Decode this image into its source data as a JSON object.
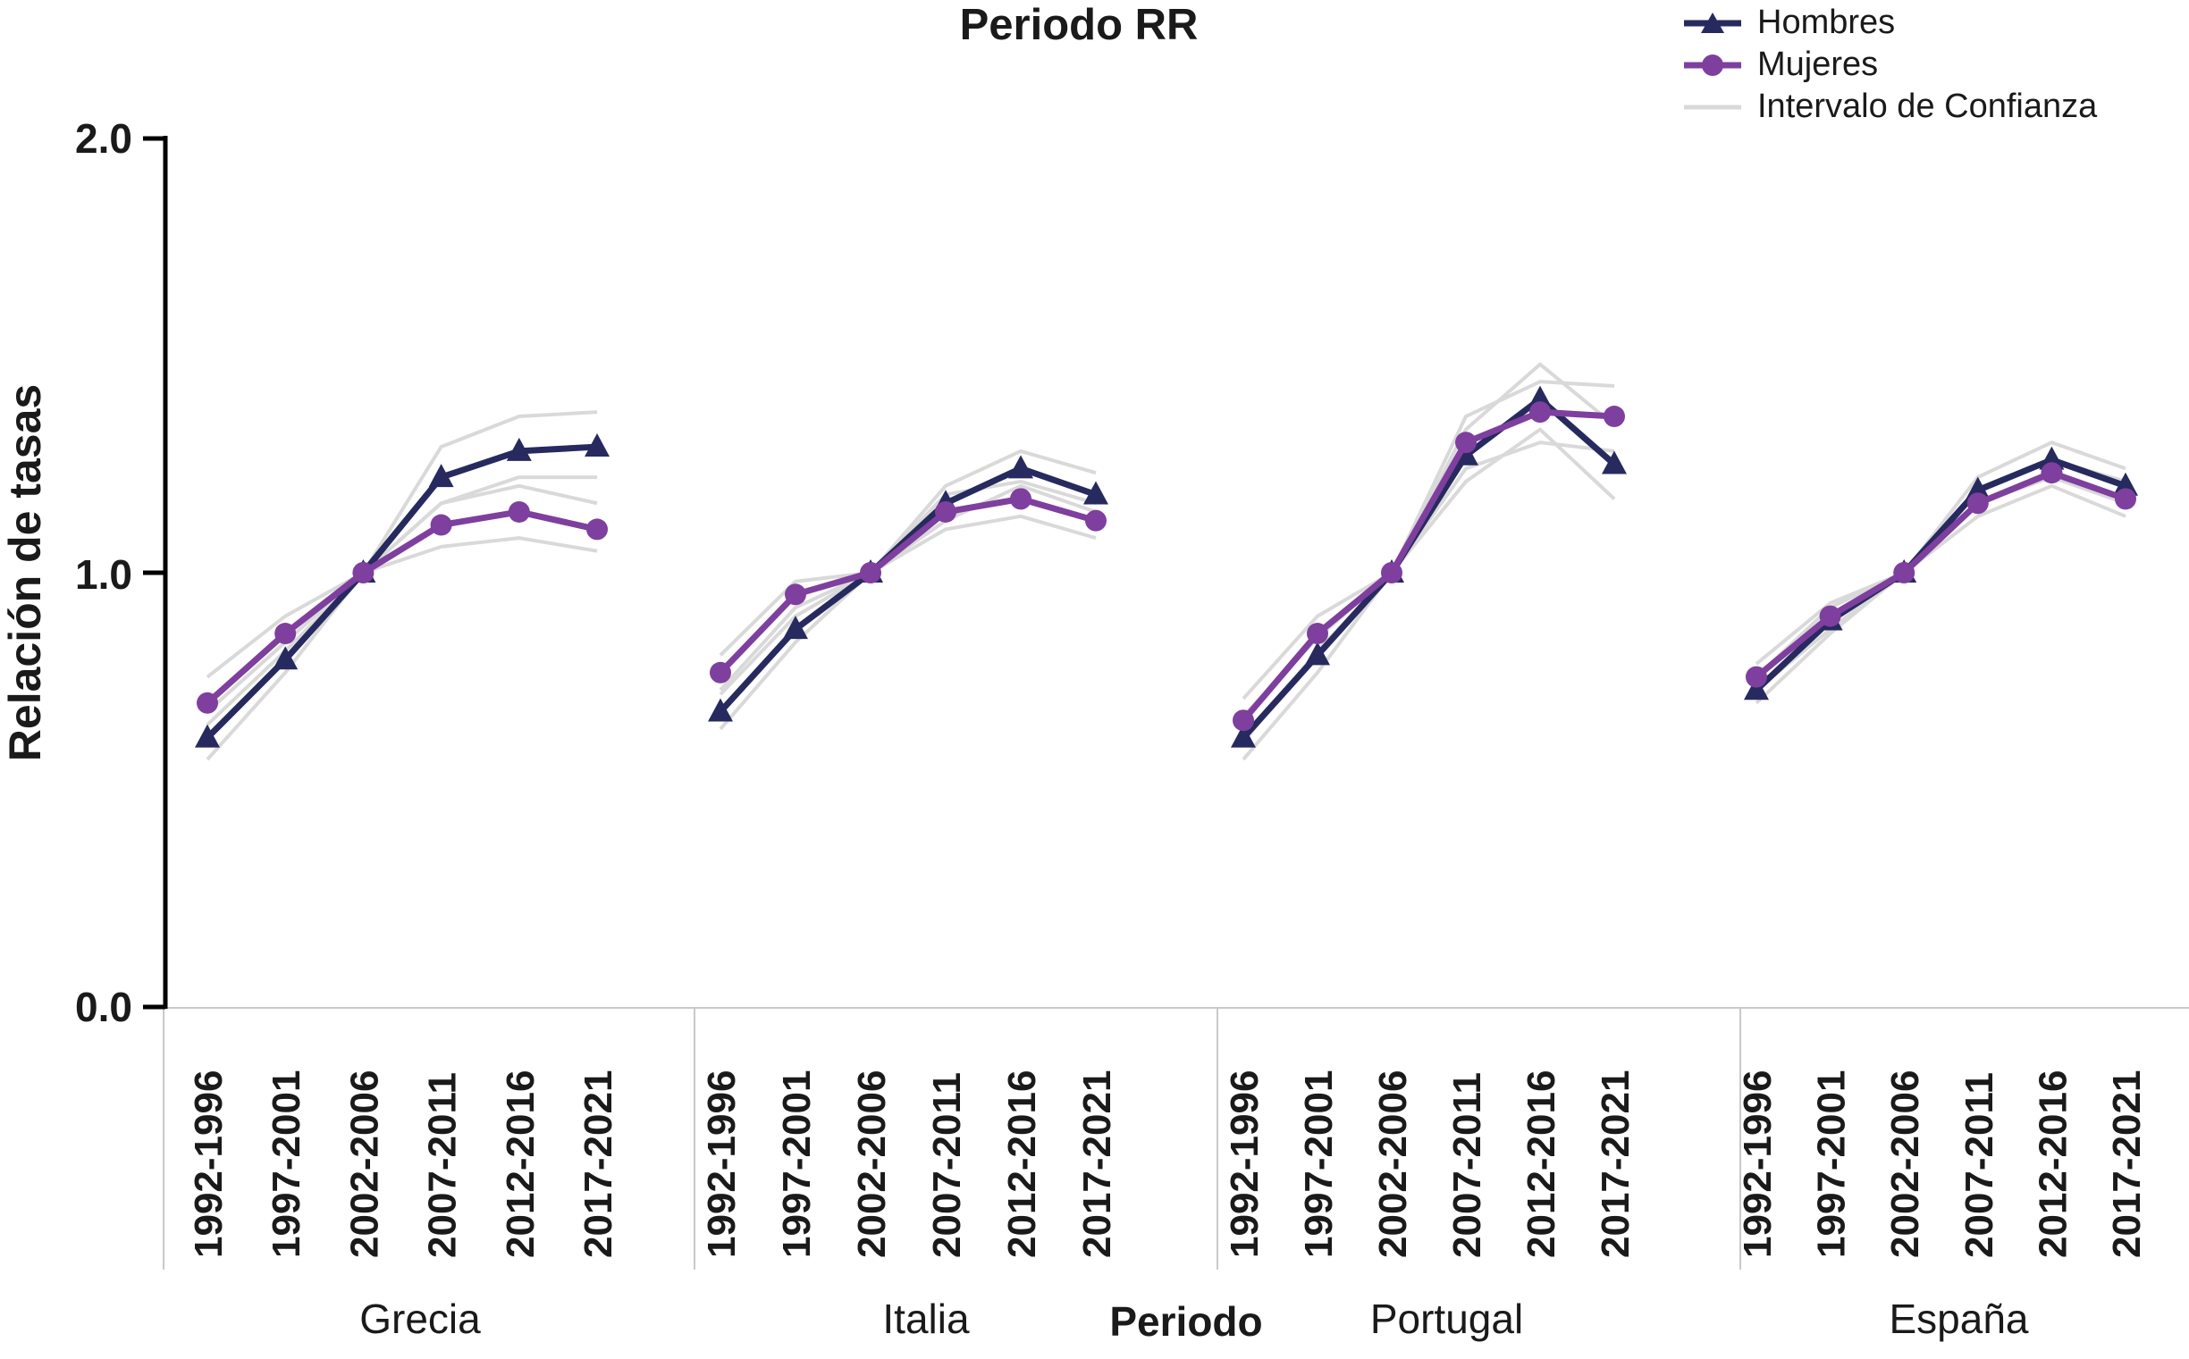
{
  "header": {
    "title": "Periodo RR"
  },
  "legend": {
    "items": [
      {
        "label": "Hombres",
        "marker": "triangle-line",
        "color": "#262a5e"
      },
      {
        "label": "Mujeres",
        "marker": "circle-line",
        "color": "#7e3f9e"
      },
      {
        "label": "Intervalo de Confianza",
        "marker": "plain-line",
        "color": "#d9d9d9"
      }
    ]
  },
  "colors": {
    "hombres": "#262a5e",
    "mujeres": "#7e3f9e",
    "ci": "#d9d9d9",
    "axis": "#000000",
    "band_line": "#c9c9c9",
    "text": "#1a1a1a"
  },
  "chart_data": {
    "type": "line",
    "title": "Periodo RR",
    "xlabel": "Periodo",
    "ylabel": "Relación de tasas",
    "ylim": [
      0.0,
      2.0
    ],
    "yticks": [
      2.0,
      1.0,
      0.0
    ],
    "ytick_display": [
      "2.0",
      "1.0",
      "0.0"
    ],
    "grid": false,
    "legend_position": "top-right",
    "reference_period": "2002-2006",
    "categories": [
      "1992-1996",
      "1997-2001",
      "2002-2006",
      "2007-2011",
      "2012-2016",
      "2017-2021"
    ],
    "panels": [
      {
        "country": "Grecia",
        "series": [
          {
            "name": "Hombres",
            "values": [
              0.62,
              0.8,
              1.0,
              1.22,
              1.28,
              1.29
            ],
            "ci_low": [
              0.57,
              0.77,
              1.0,
              1.16,
              1.22,
              1.22
            ],
            "ci_high": [
              0.68,
              0.84,
              1.0,
              1.29,
              1.36,
              1.37
            ]
          },
          {
            "name": "Mujeres",
            "values": [
              0.7,
              0.86,
              1.0,
              1.11,
              1.14,
              1.1
            ],
            "ci_low": [
              0.65,
              0.82,
              1.0,
              1.06,
              1.08,
              1.05
            ],
            "ci_high": [
              0.76,
              0.9,
              1.0,
              1.16,
              1.2,
              1.16
            ]
          }
        ]
      },
      {
        "country": "Italia",
        "series": [
          {
            "name": "Hombres",
            "values": [
              0.68,
              0.87,
              1.0,
              1.16,
              1.24,
              1.18
            ],
            "ci_low": [
              0.64,
              0.84,
              1.0,
              1.12,
              1.2,
              1.14
            ],
            "ci_high": [
              0.72,
              0.9,
              1.0,
              1.2,
              1.28,
              1.23
            ]
          },
          {
            "name": "Mujeres",
            "values": [
              0.77,
              0.95,
              1.0,
              1.14,
              1.17,
              1.12
            ],
            "ci_low": [
              0.73,
              0.92,
              1.0,
              1.1,
              1.13,
              1.08
            ],
            "ci_high": [
              0.81,
              0.98,
              1.0,
              1.18,
              1.21,
              1.16
            ]
          }
        ]
      },
      {
        "country": "Portugal",
        "series": [
          {
            "name": "Hombres",
            "values": [
              0.62,
              0.81,
              1.0,
              1.27,
              1.4,
              1.25
            ],
            "ci_low": [
              0.57,
              0.77,
              1.0,
              1.21,
              1.33,
              1.17
            ],
            "ci_high": [
              0.67,
              0.85,
              1.0,
              1.33,
              1.48,
              1.34
            ]
          },
          {
            "name": "Mujeres",
            "values": [
              0.66,
              0.86,
              1.0,
              1.3,
              1.37,
              1.36
            ],
            "ci_low": [
              0.61,
              0.82,
              1.0,
              1.24,
              1.3,
              1.28
            ],
            "ci_high": [
              0.71,
              0.9,
              1.0,
              1.36,
              1.44,
              1.43
            ]
          }
        ]
      },
      {
        "country": "España",
        "series": [
          {
            "name": "Hombres",
            "values": [
              0.73,
              0.89,
              1.0,
              1.19,
              1.26,
              1.2
            ],
            "ci_low": [
              0.7,
              0.86,
              1.0,
              1.16,
              1.22,
              1.16
            ],
            "ci_high": [
              0.76,
              0.92,
              1.0,
              1.22,
              1.3,
              1.24
            ]
          },
          {
            "name": "Mujeres",
            "values": [
              0.76,
              0.9,
              1.0,
              1.16,
              1.23,
              1.17
            ],
            "ci_low": [
              0.73,
              0.87,
              1.0,
              1.13,
              1.2,
              1.13
            ],
            "ci_high": [
              0.79,
              0.93,
              1.0,
              1.19,
              1.26,
              1.21
            ]
          }
        ]
      }
    ]
  }
}
